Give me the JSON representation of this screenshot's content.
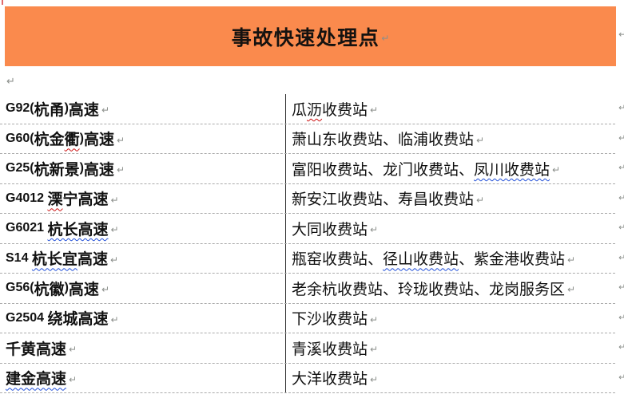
{
  "banner": {
    "title": "事故快速处理点",
    "bg_color": "#FA8A4D"
  },
  "marks": {
    "paragraph_mark": "↵"
  },
  "colors": {
    "banner_orange": "#FA8A4D",
    "spell_red": "#CC1111",
    "grammar_blue": "#2250D8",
    "divider_black": "#2E2E2E",
    "dashed_gray": "#ABABAB",
    "mark_gray": "#8B8F8B"
  },
  "table": {
    "left_column_meaning": "highway",
    "right_column_meaning": "toll-stations",
    "rows": [
      {
        "left": [
          {
            "text": "G92(",
            "style": "latin"
          },
          {
            "text": "杭甬",
            "style": "cn"
          },
          {
            "text": ")",
            "style": "latin"
          },
          {
            "text": "高速",
            "style": "cn"
          }
        ],
        "right": [
          {
            "text": "瓜",
            "style": "cn"
          },
          {
            "text": "沥",
            "style": "cn",
            "squiggle": "red"
          },
          {
            "text": "收费站",
            "style": "cn"
          }
        ]
      },
      {
        "left": [
          {
            "text": "G60(",
            "style": "latin"
          },
          {
            "text": "杭金",
            "style": "cn"
          },
          {
            "text": "衢",
            "style": "cn",
            "squiggle": "red"
          },
          {
            "text": ")",
            "style": "latin"
          },
          {
            "text": "高速",
            "style": "cn"
          }
        ],
        "right": [
          {
            "text": "萧山东收费站、临浦收费站",
            "style": "cn"
          }
        ]
      },
      {
        "left": [
          {
            "text": "G25(",
            "style": "latin"
          },
          {
            "text": "杭新景",
            "style": "cn"
          },
          {
            "text": ")",
            "style": "latin"
          },
          {
            "text": "高速",
            "style": "cn"
          }
        ],
        "right": [
          {
            "text": "富阳收费站、龙门收费站、",
            "style": "cn"
          },
          {
            "text": "凤川收费站",
            "style": "cn",
            "squiggle": "blue"
          }
        ]
      },
      {
        "left": [
          {
            "text": "G4012 ",
            "style": "latin"
          },
          {
            "text": "溧",
            "style": "cn",
            "squiggle": "red"
          },
          {
            "text": "宁高速",
            "style": "cn"
          }
        ],
        "right": [
          {
            "text": "新安江收费站、寿昌收费站",
            "style": "cn"
          }
        ]
      },
      {
        "left": [
          {
            "text": "G6021 ",
            "style": "latin"
          },
          {
            "text": "杭长高速",
            "style": "cn",
            "squiggle": "blue"
          }
        ],
        "right": [
          {
            "text": "大同收费站",
            "style": "cn"
          }
        ]
      },
      {
        "left": [
          {
            "text": "S14 ",
            "style": "latin"
          },
          {
            "text": "杭长宜",
            "style": "cn",
            "squiggle": "blue"
          },
          {
            "text": "高速",
            "style": "cn"
          }
        ],
        "right": [
          {
            "text": "瓶窑收费站、",
            "style": "cn"
          },
          {
            "text": "径山收费站",
            "style": "cn",
            "squiggle": "blue"
          },
          {
            "text": "、紫金港收费站",
            "style": "cn"
          }
        ]
      },
      {
        "left": [
          {
            "text": "G56(",
            "style": "latin"
          },
          {
            "text": "杭徽",
            "style": "cn"
          },
          {
            "text": ")",
            "style": "latin"
          },
          {
            "text": "高速",
            "style": "cn"
          }
        ],
        "right": [
          {
            "text": "老余杭收费站、玲珑收费站、龙岗服务区",
            "style": "cn"
          }
        ]
      },
      {
        "left": [
          {
            "text": "G2504 ",
            "style": "latin"
          },
          {
            "text": "绕城高速",
            "style": "cn"
          }
        ],
        "right": [
          {
            "text": "下沙收费站",
            "style": "cn"
          }
        ]
      },
      {
        "left": [
          {
            "text": "千黄高速",
            "style": "cn"
          }
        ],
        "right": [
          {
            "text": "青溪收费站",
            "style": "cn"
          }
        ]
      },
      {
        "left": [
          {
            "text": "建金高速",
            "style": "cn",
            "squiggle": "blue"
          }
        ],
        "right": [
          {
            "text": "大洋收费站",
            "style": "cn"
          }
        ]
      }
    ]
  }
}
